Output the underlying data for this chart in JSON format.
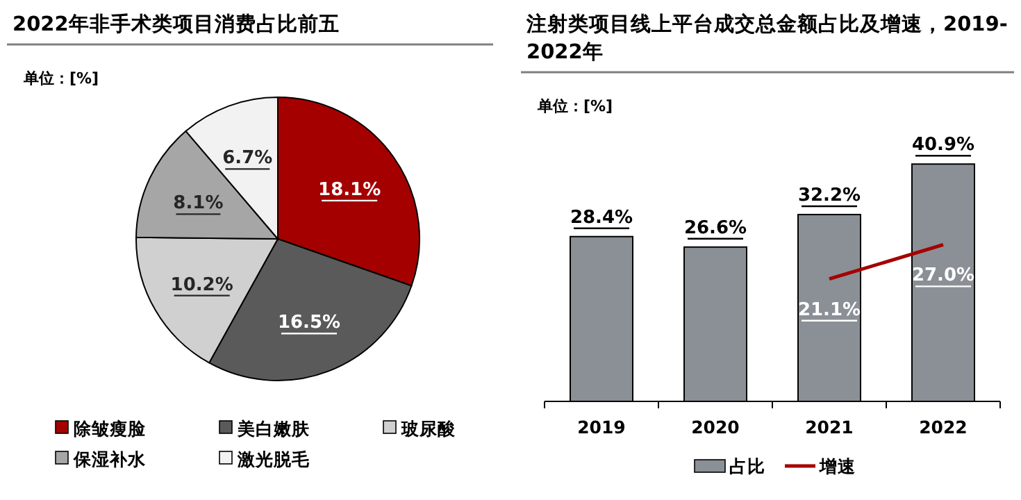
{
  "chart_data": [
    {
      "type": "pie",
      "title": "2022年非手术类项目消费占比前五",
      "annotations": [
        "单位：[%]"
      ],
      "categories": [
        "除皱瘦脸",
        "美白嫩肤",
        "玻尿酸",
        "保湿补水",
        "激光脱毛"
      ],
      "values": [
        18.1,
        16.5,
        10.2,
        8.1,
        6.7
      ],
      "value_labels": [
        "18.1%",
        "16.5%",
        "10.2%",
        "8.1%",
        "6.7%"
      ],
      "colors": [
        "#a50000",
        "#5a5a5a",
        "#d0d0d0",
        "#a6a6a6",
        "#f2f2f2"
      ],
      "legend": "bottom"
    },
    {
      "type": "bar",
      "title": "注射类项目线上平台成交总金额占比及增速，2019-2022年",
      "annotations": [
        "单位：[%]"
      ],
      "categories": [
        "2019",
        "2020",
        "2021",
        "2022"
      ],
      "legend": "bottom",
      "tick_labels": "x",
      "series": [
        {
          "name": "占比",
          "type": "bar",
          "color": "#8a9095",
          "values": [
            28.4,
            26.6,
            32.2,
            40.9
          ],
          "value_labels": [
            "28.4%",
            "26.6%",
            "32.2%",
            "40.9%"
          ]
        },
        {
          "name": "增速",
          "type": "line",
          "color": "#a50000",
          "values": [
            null,
            null,
            21.1,
            27.0
          ],
          "value_labels": [
            null,
            null,
            "21.1%",
            "27.0%"
          ]
        }
      ]
    }
  ]
}
